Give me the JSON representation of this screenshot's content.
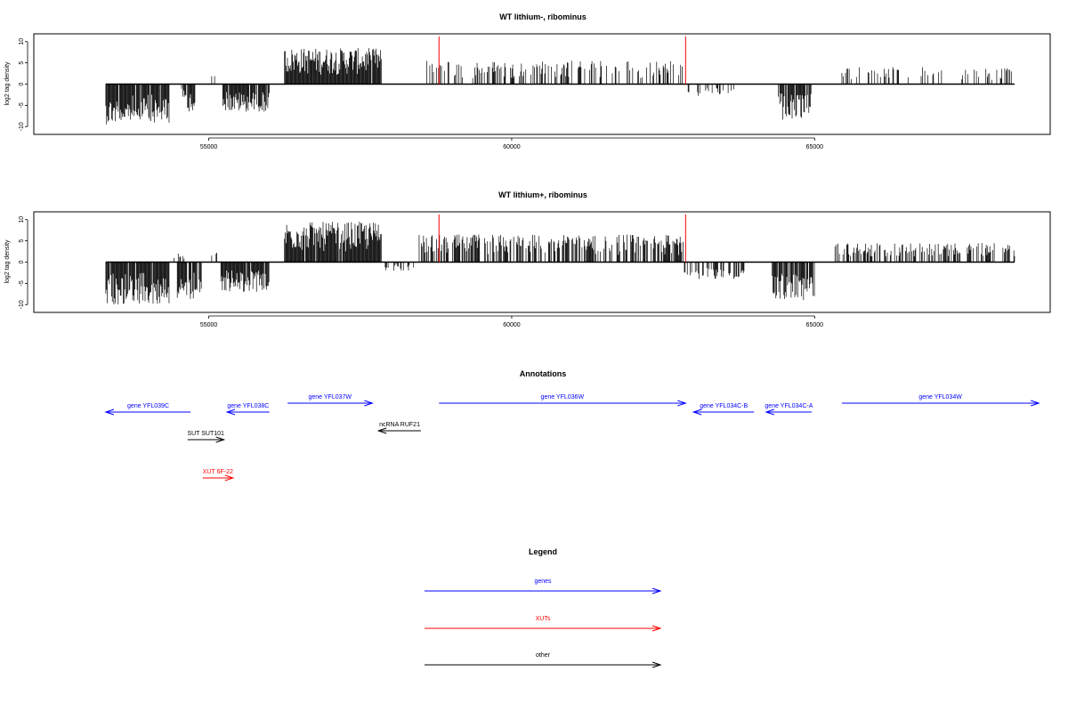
{
  "colors": {
    "gene": "#0000ff",
    "xut": "#ff0000",
    "other": "#000000",
    "marker": "#ff0000",
    "bars": "#000000"
  },
  "chart_data": [
    {
      "type": "bar",
      "title": "WT lithium-, ribominus",
      "ylabel": "log2 tag density",
      "xlim": [
        52200,
        68800
      ],
      "ylim": [
        -11,
        11
      ],
      "x_ticks": [
        55000,
        60000,
        65000
      ],
      "y_ticks": [
        10,
        5,
        0,
        -5,
        -10
      ],
      "markers": [
        {
          "x": 58800,
          "color": "red"
        },
        {
          "x": 62870,
          "color": "red"
        }
      ],
      "series_note": "dense per-position bars; approximate envelope",
      "regions": [
        {
          "start": 53300,
          "end": 54350,
          "sign": -1,
          "amp": 9.5,
          "density": 0.95
        },
        {
          "start": 54550,
          "end": 54630,
          "sign": -1,
          "amp": 3,
          "density": 0.6
        },
        {
          "start": 54650,
          "end": 54800,
          "sign": -1,
          "amp": 8,
          "density": 0.9
        },
        {
          "start": 55000,
          "end": 55200,
          "sign": 1,
          "amp": 3,
          "density": 0.15
        },
        {
          "start": 55230,
          "end": 56000,
          "sign": -1,
          "amp": 6.5,
          "density": 0.9
        },
        {
          "start": 56250,
          "end": 57850,
          "sign": 1,
          "amp": 8.5,
          "density": 0.97
        },
        {
          "start": 58600,
          "end": 62850,
          "sign": 1,
          "amp": 5.5,
          "density": 0.35
        },
        {
          "start": 62900,
          "end": 63700,
          "sign": -1,
          "amp": 3,
          "density": 0.25
        },
        {
          "start": 64400,
          "end": 64950,
          "sign": -1,
          "amp": 8.5,
          "density": 0.9
        },
        {
          "start": 65450,
          "end": 68300,
          "sign": 1,
          "amp": 4,
          "density": 0.25
        }
      ]
    },
    {
      "type": "bar",
      "title": "WT lithium+, ribominus",
      "ylabel": "log2 tag density",
      "xlim": [
        52200,
        68800
      ],
      "ylim": [
        -11,
        11
      ],
      "x_ticks": [
        55000,
        60000,
        65000
      ],
      "y_ticks": [
        10,
        5,
        0,
        -5,
        -10
      ],
      "markers": [
        {
          "x": 58800,
          "color": "red"
        },
        {
          "x": 62870,
          "color": "red"
        }
      ],
      "series_note": "dense per-position bars; approximate envelope",
      "regions": [
        {
          "start": 53300,
          "end": 54350,
          "sign": -1,
          "amp": 10,
          "density": 0.95
        },
        {
          "start": 54400,
          "end": 54600,
          "sign": 1,
          "amp": 2,
          "density": 0.3
        },
        {
          "start": 54480,
          "end": 54880,
          "sign": -1,
          "amp": 9,
          "density": 0.9
        },
        {
          "start": 55000,
          "end": 55200,
          "sign": 1,
          "amp": 4,
          "density": 0.2
        },
        {
          "start": 55200,
          "end": 56000,
          "sign": -1,
          "amp": 7,
          "density": 0.9
        },
        {
          "start": 56250,
          "end": 57850,
          "sign": 1,
          "amp": 9.5,
          "density": 0.97
        },
        {
          "start": 57900,
          "end": 58400,
          "sign": -1,
          "amp": 2,
          "density": 0.2
        },
        {
          "start": 58400,
          "end": 62850,
          "sign": 1,
          "amp": 6.5,
          "density": 0.6
        },
        {
          "start": 62850,
          "end": 63900,
          "sign": -1,
          "amp": 4,
          "density": 0.5
        },
        {
          "start": 64300,
          "end": 65000,
          "sign": -1,
          "amp": 9,
          "density": 0.9
        },
        {
          "start": 65300,
          "end": 68300,
          "sign": 1,
          "amp": 4.5,
          "density": 0.5
        }
      ]
    }
  ],
  "annotations": {
    "title": "Annotations",
    "features": [
      {
        "label": "gene YFL039C",
        "start": 53300,
        "end": 54700,
        "strand": "-",
        "kind": "gene",
        "row": 1
      },
      {
        "label": "gene YFL038C",
        "start": 55300,
        "end": 56000,
        "strand": "-",
        "kind": "gene",
        "row": 1
      },
      {
        "label": "gene YFL037W",
        "start": 56300,
        "end": 57700,
        "strand": "+",
        "kind": "gene",
        "row": 0
      },
      {
        "label": "gene YFL036W",
        "start": 58800,
        "end": 62870,
        "strand": "+",
        "kind": "gene",
        "row": 0
      },
      {
        "label": "gene YFL034C-B",
        "start": 63000,
        "end": 64000,
        "strand": "-",
        "kind": "gene",
        "row": 1
      },
      {
        "label": "gene YFL034C-A",
        "start": 64200,
        "end": 64950,
        "strand": "-",
        "kind": "gene",
        "row": 1
      },
      {
        "label": "gene YFL034W",
        "start": 65450,
        "end": 68700,
        "strand": "+",
        "kind": "gene",
        "row": 0
      },
      {
        "label": "ncRNA RUF21",
        "start": 57800,
        "end": 58500,
        "strand": "-",
        "kind": "other",
        "row": 2
      },
      {
        "label": "SUT SUT101",
        "start": 54650,
        "end": 55250,
        "strand": "+",
        "kind": "other",
        "row": 3
      },
      {
        "label": "XUT 6F-22",
        "start": 54900,
        "end": 55400,
        "strand": "+",
        "kind": "xut",
        "row": 4
      }
    ]
  },
  "legend": {
    "title": "Legend",
    "items": [
      {
        "label": "genes",
        "kind": "gene"
      },
      {
        "label": "XUTs",
        "kind": "xut"
      },
      {
        "label": "other",
        "kind": "other"
      }
    ]
  }
}
